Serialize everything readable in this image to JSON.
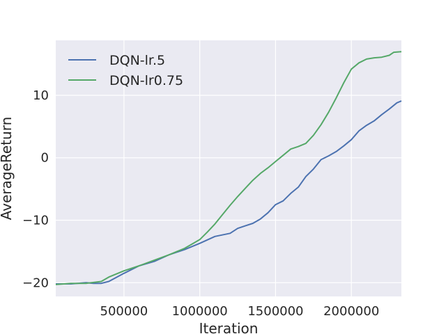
{
  "chart_data": {
    "type": "line",
    "xlabel": "Iteration",
    "ylabel": "AverageReturn",
    "xlim": [
      50000,
      2330000
    ],
    "ylim": [
      -22.2,
      18.8
    ],
    "xticks": [
      500000,
      1000000,
      1500000,
      2000000
    ],
    "xtick_labels": [
      "500000",
      "1000000",
      "1500000",
      "2000000"
    ],
    "yticks": [
      -20,
      -10,
      0,
      10
    ],
    "ytick_labels": [
      "−20",
      "−10",
      "0",
      "10"
    ],
    "grid": true,
    "legend": "top-left",
    "colors": {
      "background": "#EAEAF2",
      "grid": "#FFFFFF"
    },
    "series": [
      {
        "name": "DQN-lr.5",
        "color": "#4C72B0",
        "x": [
          50000,
          150000,
          250000,
          300000,
          350000,
          400000,
          500000,
          600000,
          700000,
          800000,
          900000,
          1000000,
          1100000,
          1200000,
          1250000,
          1300000,
          1350000,
          1400000,
          1450000,
          1500000,
          1550000,
          1600000,
          1650000,
          1700000,
          1750000,
          1800000,
          1850000,
          1900000,
          1950000,
          2000000,
          2050000,
          2100000,
          2150000,
          2200000,
          2250000,
          2300000,
          2330000
        ],
        "y": [
          -20.2,
          -20.2,
          -20.0,
          -20.1,
          -20.1,
          -19.8,
          -18.5,
          -17.3,
          -16.6,
          -15.5,
          -14.7,
          -13.7,
          -12.6,
          -12.1,
          -11.3,
          -10.9,
          -10.5,
          -9.8,
          -8.8,
          -7.5,
          -6.9,
          -5.7,
          -4.7,
          -3.0,
          -1.8,
          -0.3,
          0.3,
          1.0,
          1.9,
          2.9,
          4.3,
          5.2,
          5.9,
          6.9,
          7.8,
          8.8,
          9.1
        ]
      },
      {
        "name": "DQN-lr0.75",
        "color": "#55A868",
        "x": [
          50000,
          150000,
          250000,
          350000,
          400000,
          500000,
          600000,
          700000,
          800000,
          900000,
          950000,
          1000000,
          1050000,
          1100000,
          1150000,
          1200000,
          1250000,
          1300000,
          1350000,
          1400000,
          1450000,
          1500000,
          1550000,
          1600000,
          1650000,
          1700000,
          1750000,
          1800000,
          1850000,
          1900000,
          1950000,
          2000000,
          2050000,
          2100000,
          2150000,
          2200000,
          2250000,
          2280000,
          2330000
        ],
        "y": [
          -20.3,
          -20.1,
          -20.1,
          -19.8,
          -19.1,
          -18.1,
          -17.3,
          -16.4,
          -15.5,
          -14.5,
          -13.8,
          -13.1,
          -11.9,
          -10.6,
          -9.1,
          -7.6,
          -6.2,
          -4.9,
          -3.6,
          -2.5,
          -1.6,
          -0.6,
          0.4,
          1.4,
          1.8,
          2.3,
          3.6,
          5.3,
          7.3,
          9.6,
          12.0,
          14.2,
          15.2,
          15.8,
          16.0,
          16.1,
          16.4,
          16.9,
          17.0
        ]
      }
    ]
  }
}
